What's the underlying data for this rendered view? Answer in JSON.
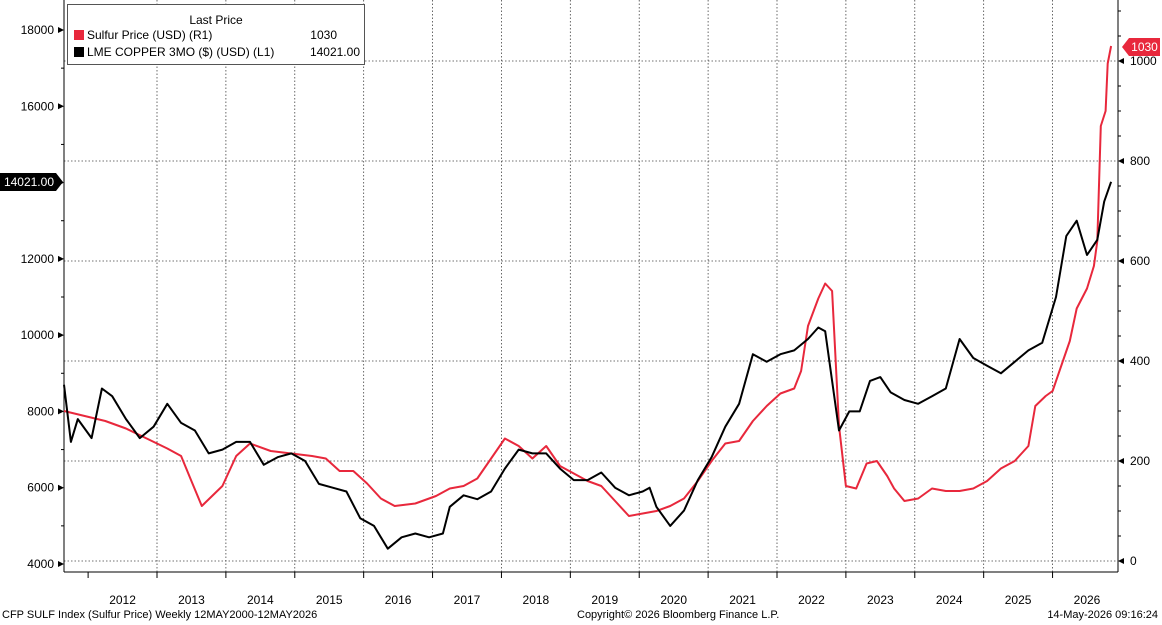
{
  "legend": {
    "title": "Last Price",
    "entries": [
      {
        "name": "Sulfur Price (USD)  (R1)",
        "value": "1030",
        "color": "#e8283c"
      },
      {
        "name": "LME COPPER 3MO ($) (USD)  (L1)",
        "value": "14021.00",
        "color": "#000000"
      }
    ]
  },
  "badges": {
    "left": "14021.00",
    "right": "1030"
  },
  "footer": {
    "left": "CFP SULF Index (Sulfur Price) Weekly 12MAY2000-12MAY2026",
    "center": "Copyright© 2026 Bloomberg Finance L.P.",
    "right": "14-May-2026 09:16:24"
  },
  "chart_data": {
    "type": "line",
    "x_ticks": [
      "2012",
      "2013",
      "2014",
      "2015",
      "2016",
      "2017",
      "2018",
      "2019",
      "2020",
      "2021",
      "2022",
      "2023",
      "2024",
      "2025",
      "2026"
    ],
    "y_left": {
      "range": [
        4000,
        18800
      ],
      "ticks": [
        4000,
        6000,
        8000,
        10000,
        12000,
        14000,
        16000,
        18000
      ]
    },
    "y_right": {
      "range": [
        0,
        1122
      ],
      "ticks": [
        0,
        200,
        400,
        600,
        800,
        1000
      ]
    },
    "grid": true,
    "legend_position": "top-left",
    "series": [
      {
        "name": "Sulfur Price (USD)  (R1)",
        "axis": "right",
        "color": "#e8283c",
        "points": [
          [
            2011.3,
            300
          ],
          [
            2011.6,
            290
          ],
          [
            2011.9,
            280
          ],
          [
            2012.2,
            265
          ],
          [
            2012.5,
            245
          ],
          [
            2012.8,
            225
          ],
          [
            2013.0,
            210
          ],
          [
            2013.15,
            160
          ],
          [
            2013.3,
            110
          ],
          [
            2013.45,
            130
          ],
          [
            2013.6,
            150
          ],
          [
            2013.8,
            210
          ],
          [
            2014.0,
            235
          ],
          [
            2014.3,
            220
          ],
          [
            2014.6,
            215
          ],
          [
            2014.9,
            210
          ],
          [
            2015.1,
            205
          ],
          [
            2015.3,
            180
          ],
          [
            2015.5,
            180
          ],
          [
            2015.7,
            155
          ],
          [
            2015.9,
            125
          ],
          [
            2016.1,
            110
          ],
          [
            2016.4,
            115
          ],
          [
            2016.7,
            130
          ],
          [
            2016.9,
            145
          ],
          [
            2017.1,
            150
          ],
          [
            2017.3,
            165
          ],
          [
            2017.5,
            205
          ],
          [
            2017.7,
            245
          ],
          [
            2017.9,
            230
          ],
          [
            2018.1,
            205
          ],
          [
            2018.3,
            230
          ],
          [
            2018.5,
            190
          ],
          [
            2018.7,
            175
          ],
          [
            2018.9,
            160
          ],
          [
            2019.1,
            150
          ],
          [
            2019.3,
            120
          ],
          [
            2019.5,
            90
          ],
          [
            2019.7,
            95
          ],
          [
            2019.9,
            100
          ],
          [
            2020.1,
            110
          ],
          [
            2020.3,
            125
          ],
          [
            2020.5,
            160
          ],
          [
            2020.7,
            200
          ],
          [
            2020.9,
            235
          ],
          [
            2021.1,
            240
          ],
          [
            2021.3,
            280
          ],
          [
            2021.5,
            310
          ],
          [
            2021.7,
            335
          ],
          [
            2021.9,
            345
          ],
          [
            2022.0,
            380
          ],
          [
            2022.1,
            470
          ],
          [
            2022.25,
            525
          ],
          [
            2022.35,
            555
          ],
          [
            2022.45,
            540
          ],
          [
            2022.55,
            270
          ],
          [
            2022.65,
            150
          ],
          [
            2022.8,
            145
          ],
          [
            2022.95,
            195
          ],
          [
            2023.1,
            200
          ],
          [
            2023.25,
            170
          ],
          [
            2023.35,
            145
          ],
          [
            2023.5,
            120
          ],
          [
            2023.7,
            125
          ],
          [
            2023.9,
            145
          ],
          [
            2024.1,
            140
          ],
          [
            2024.3,
            140
          ],
          [
            2024.5,
            145
          ],
          [
            2024.7,
            160
          ],
          [
            2024.9,
            185
          ],
          [
            2025.1,
            200
          ],
          [
            2025.3,
            230
          ],
          [
            2025.4,
            310
          ],
          [
            2025.55,
            330
          ],
          [
            2025.65,
            340
          ],
          [
            2025.8,
            400
          ],
          [
            2025.9,
            440
          ],
          [
            2026.0,
            505
          ],
          [
            2026.15,
            545
          ],
          [
            2026.25,
            590
          ],
          [
            2026.3,
            640
          ],
          [
            2026.35,
            870
          ],
          [
            2026.42,
            900
          ],
          [
            2026.45,
            995
          ],
          [
            2026.5,
            1030
          ]
        ]
      },
      {
        "name": "LME COPPER 3MO ($) (USD)  (L1)",
        "axis": "left",
        "color": "#000000",
        "points": [
          [
            2011.3,
            8700
          ],
          [
            2011.4,
            7200
          ],
          [
            2011.5,
            7800
          ],
          [
            2011.7,
            7300
          ],
          [
            2011.85,
            8600
          ],
          [
            2012.0,
            8400
          ],
          [
            2012.2,
            7800
          ],
          [
            2012.4,
            7300
          ],
          [
            2012.6,
            7600
          ],
          [
            2012.8,
            8200
          ],
          [
            2013.0,
            7700
          ],
          [
            2013.2,
            7500
          ],
          [
            2013.4,
            6900
          ],
          [
            2013.6,
            7000
          ],
          [
            2013.8,
            7200
          ],
          [
            2014.0,
            7200
          ],
          [
            2014.2,
            6600
          ],
          [
            2014.4,
            6800
          ],
          [
            2014.6,
            6900
          ],
          [
            2014.8,
            6700
          ],
          [
            2015.0,
            6100
          ],
          [
            2015.2,
            6000
          ],
          [
            2015.4,
            5900
          ],
          [
            2015.6,
            5200
          ],
          [
            2015.8,
            5000
          ],
          [
            2015.9,
            4700
          ],
          [
            2016.0,
            4400
          ],
          [
            2016.2,
            4700
          ],
          [
            2016.4,
            4800
          ],
          [
            2016.6,
            4700
          ],
          [
            2016.8,
            4800
          ],
          [
            2016.9,
            5500
          ],
          [
            2017.1,
            5800
          ],
          [
            2017.3,
            5700
          ],
          [
            2017.5,
            5900
          ],
          [
            2017.7,
            6500
          ],
          [
            2017.9,
            7000
          ],
          [
            2018.1,
            6900
          ],
          [
            2018.3,
            6900
          ],
          [
            2018.5,
            6500
          ],
          [
            2018.7,
            6200
          ],
          [
            2018.9,
            6200
          ],
          [
            2019.1,
            6400
          ],
          [
            2019.3,
            6000
          ],
          [
            2019.5,
            5800
          ],
          [
            2019.7,
            5900
          ],
          [
            2019.8,
            6000
          ],
          [
            2019.9,
            5500
          ],
          [
            2020.1,
            5000
          ],
          [
            2020.3,
            5400
          ],
          [
            2020.5,
            6200
          ],
          [
            2020.7,
            6800
          ],
          [
            2020.9,
            7600
          ],
          [
            2021.1,
            8200
          ],
          [
            2021.3,
            9500
          ],
          [
            2021.5,
            9300
          ],
          [
            2021.7,
            9500
          ],
          [
            2021.9,
            9600
          ],
          [
            2022.1,
            9900
          ],
          [
            2022.25,
            10200
          ],
          [
            2022.35,
            10100
          ],
          [
            2022.45,
            8800
          ],
          [
            2022.55,
            7500
          ],
          [
            2022.7,
            8000
          ],
          [
            2022.85,
            8000
          ],
          [
            2023.0,
            8800
          ],
          [
            2023.15,
            8900
          ],
          [
            2023.3,
            8500
          ],
          [
            2023.5,
            8300
          ],
          [
            2023.7,
            8200
          ],
          [
            2023.9,
            8400
          ],
          [
            2024.1,
            8600
          ],
          [
            2024.3,
            9900
          ],
          [
            2024.5,
            9400
          ],
          [
            2024.7,
            9200
          ],
          [
            2024.9,
            9000
          ],
          [
            2025.1,
            9300
          ],
          [
            2025.3,
            9600
          ],
          [
            2025.5,
            9800
          ],
          [
            2025.7,
            11000
          ],
          [
            2025.85,
            12600
          ],
          [
            2026.0,
            13000
          ],
          [
            2026.15,
            12100
          ],
          [
            2026.3,
            12500
          ],
          [
            2026.4,
            13500
          ],
          [
            2026.5,
            14021
          ]
        ]
      }
    ]
  }
}
